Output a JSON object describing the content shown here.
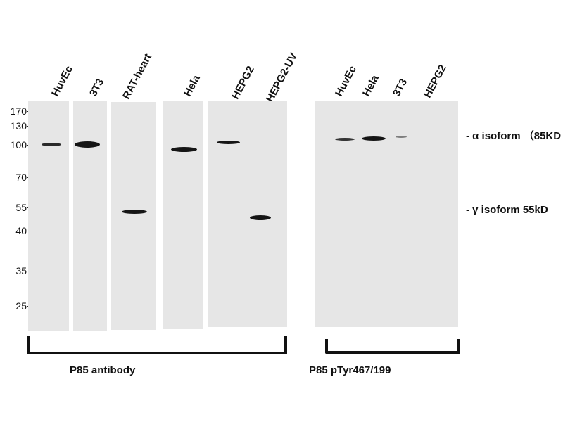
{
  "lanes_left": [
    "HuvEc",
    "3T3",
    "RAT-heart",
    "Hela",
    "HEPG2",
    "HEPG2-UV"
  ],
  "lanes_right": [
    "HuvEc",
    "Hela",
    "3T3",
    "HEPG2"
  ],
  "mw_markers": [
    "170",
    "130",
    "100",
    "70",
    "55",
    "40",
    "35",
    "25"
  ],
  "annotations": {
    "alpha": "- α isoform （85KD",
    "gamma": "- γ  isoform 55kD"
  },
  "groups": {
    "left": "P85   antibody",
    "right": "P85 pTyr467/199"
  }
}
